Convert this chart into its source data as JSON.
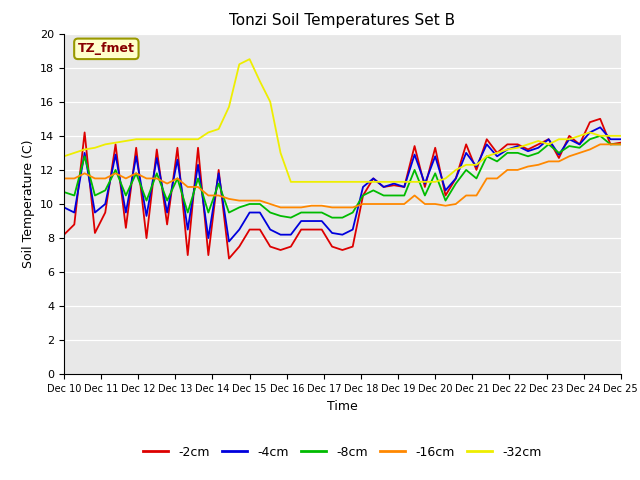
{
  "title": "Tonzi Soil Temperatures Set B",
  "xlabel": "Time",
  "ylabel": "Soil Temperature (C)",
  "annotation": "TZ_fmet",
  "x_tick_labels": [
    "Dec 10",
    "Dec 11",
    "Dec 12",
    "Dec 13",
    "Dec 14",
    "Dec 15",
    "Dec 16",
    "Dec 17",
    "Dec 18",
    "Dec 19",
    "Dec 20",
    "Dec 21",
    "Dec 22",
    "Dec 23",
    "Dec 24",
    "Dec 25"
  ],
  "ylim": [
    0,
    20
  ],
  "yticks": [
    0,
    2,
    4,
    6,
    8,
    10,
    12,
    14,
    16,
    18,
    20
  ],
  "background_color": "#e8e8e8",
  "fig_background": "#ffffff",
  "line_colors": {
    "-2cm": "#dd0000",
    "-4cm": "#0000dd",
    "-8cm": "#00bb00",
    "-16cm": "#ff8800",
    "-32cm": "#eeee00"
  },
  "series": {
    "-2cm": [
      8.2,
      8.8,
      14.2,
      8.3,
      9.5,
      13.5,
      8.6,
      13.3,
      8.0,
      13.2,
      8.8,
      13.3,
      7.0,
      13.3,
      7.0,
      12.0,
      6.8,
      7.5,
      8.5,
      8.5,
      7.5,
      7.3,
      7.5,
      8.5,
      8.5,
      8.5,
      7.5,
      7.3,
      7.5,
      10.5,
      11.5,
      11.0,
      11.1,
      11.0,
      13.4,
      11.0,
      13.3,
      10.5,
      11.5,
      13.5,
      12.0,
      13.8,
      13.0,
      13.5,
      13.5,
      13.2,
      13.5,
      13.8,
      12.7,
      14.0,
      13.5,
      14.8,
      15.0,
      13.5,
      13.6
    ],
    "-4cm": [
      9.8,
      9.5,
      13.0,
      9.5,
      10.0,
      12.9,
      9.5,
      12.8,
      9.3,
      12.7,
      9.5,
      12.6,
      8.5,
      12.3,
      8.0,
      11.8,
      7.8,
      8.5,
      9.5,
      9.5,
      8.5,
      8.2,
      8.2,
      9.0,
      9.0,
      9.0,
      8.3,
      8.2,
      8.5,
      11.0,
      11.5,
      11.0,
      11.2,
      11.0,
      12.9,
      11.2,
      12.8,
      10.8,
      11.5,
      13.0,
      12.2,
      13.5,
      12.8,
      13.2,
      13.4,
      13.1,
      13.3,
      13.8,
      12.9,
      13.8,
      13.5,
      14.2,
      14.5,
      13.8,
      13.8
    ],
    "-8cm": [
      10.7,
      10.5,
      12.8,
      10.5,
      10.8,
      12.0,
      10.5,
      11.8,
      10.2,
      11.8,
      10.2,
      11.5,
      9.5,
      11.5,
      9.5,
      11.2,
      9.5,
      9.8,
      10.0,
      10.0,
      9.5,
      9.3,
      9.2,
      9.5,
      9.5,
      9.5,
      9.2,
      9.2,
      9.5,
      10.5,
      10.8,
      10.5,
      10.5,
      10.5,
      12.0,
      10.5,
      11.8,
      10.2,
      11.2,
      12.0,
      11.5,
      12.8,
      12.5,
      13.0,
      13.0,
      12.8,
      13.0,
      13.5,
      13.0,
      13.4,
      13.3,
      13.8,
      14.0,
      13.5,
      13.5
    ],
    "-16cm": [
      11.5,
      11.5,
      11.8,
      11.5,
      11.5,
      11.8,
      11.5,
      11.8,
      11.5,
      11.5,
      11.2,
      11.5,
      11.0,
      11.0,
      10.5,
      10.5,
      10.3,
      10.2,
      10.2,
      10.2,
      10.0,
      9.8,
      9.8,
      9.8,
      9.9,
      9.9,
      9.8,
      9.8,
      9.8,
      10.0,
      10.0,
      10.0,
      10.0,
      10.0,
      10.5,
      10.0,
      10.0,
      9.9,
      10.0,
      10.5,
      10.5,
      11.5,
      11.5,
      12.0,
      12.0,
      12.2,
      12.3,
      12.5,
      12.5,
      12.8,
      13.0,
      13.2,
      13.5,
      13.5,
      13.5
    ],
    "-32cm": [
      12.8,
      13.0,
      13.2,
      13.3,
      13.5,
      13.6,
      13.7,
      13.8,
      13.8,
      13.8,
      13.8,
      13.8,
      13.8,
      13.8,
      14.2,
      14.4,
      15.7,
      18.2,
      18.5,
      17.2,
      16.0,
      13.0,
      11.3,
      11.3,
      11.3,
      11.3,
      11.3,
      11.3,
      11.3,
      11.3,
      11.3,
      11.3,
      11.3,
      11.3,
      11.3,
      11.3,
      11.3,
      11.5,
      12.0,
      12.3,
      12.3,
      12.8,
      13.0,
      13.2,
      13.3,
      13.5,
      13.7,
      13.5,
      13.8,
      13.8,
      14.0,
      14.2,
      14.0,
      14.0,
      14.0
    ]
  }
}
